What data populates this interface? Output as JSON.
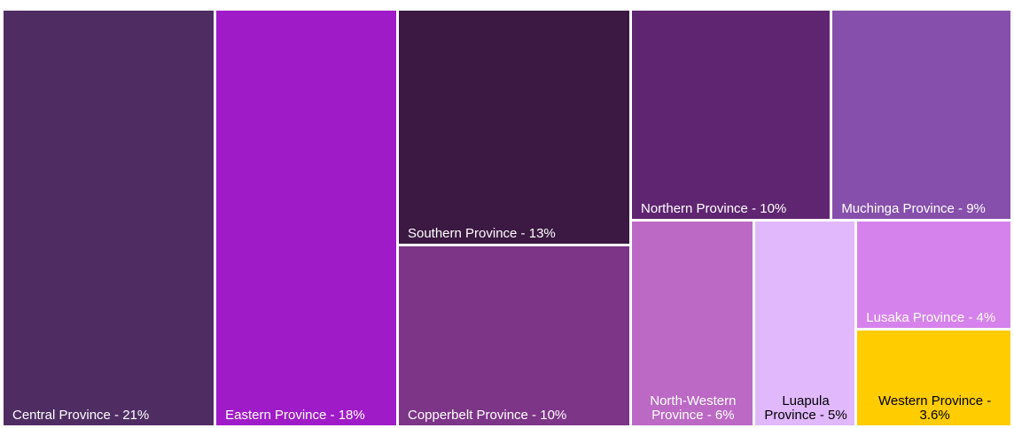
{
  "chart_data": {
    "type": "treemap",
    "categories": [
      "Central Province - 21%",
      "Eastern Province - 18%",
      "Southern Province - 13%",
      "Copperbelt Province - 10%",
      "Northern Province - 10%",
      "Muchinga Province - 9%",
      "North-Western Province - 6%",
      "Luapula Province - 5%",
      "Lusaka Province - 4%",
      "Western Province - 3.6%"
    ],
    "values": [
      21,
      18,
      13,
      10,
      10,
      9,
      6,
      5,
      4,
      3.6
    ],
    "colors": [
      "#4f2d63",
      "#a01bc8",
      "#3b1942",
      "#7d3587",
      "#5f2570",
      "#864fab",
      "#bb69c5",
      "#e0b8fb",
      "#d682ec",
      "#ffcc00"
    ],
    "label_colors": [
      "#ffffff",
      "#ffffff",
      "#ffffff",
      "#ffffff",
      "#ffffff",
      "#ffffff",
      "#ffffff",
      "#000000",
      "#ffffff",
      "#000000"
    ]
  }
}
